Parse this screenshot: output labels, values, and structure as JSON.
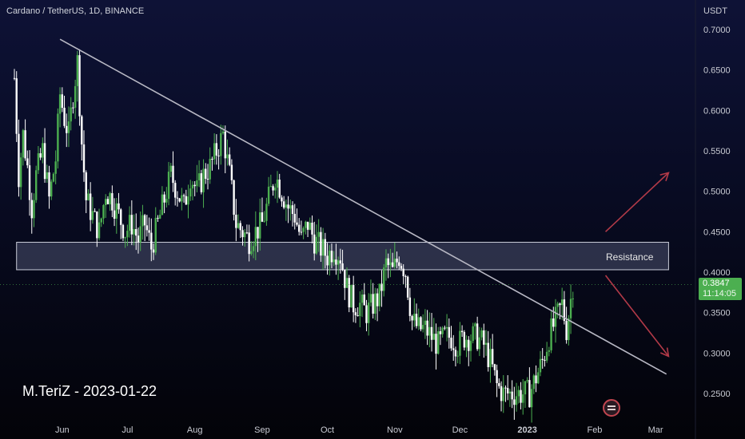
{
  "header": {
    "symbol": "Cardano / TetherUS, 1D, BINANCE"
  },
  "annotation": {
    "author_date": "M.TeriZ - 2023-01-22",
    "resistance_label": "Resistance"
  },
  "price_scale": {
    "unit": "USDT",
    "last_price": "0.3847",
    "countdown": "11:14:05"
  },
  "colors": {
    "up": "#4caf50",
    "down": "#ffffff",
    "trendline": "#b8b8c4",
    "zone": "#3a3e58",
    "arrow": "#b23a48",
    "badge": "#4caf50"
  },
  "logo": {
    "icon": "tradingview-watermark-icon"
  },
  "chart_data": {
    "type": "candlestick",
    "title": "Cardano / TetherUS, 1D, BINANCE",
    "ylabel": "USDT",
    "ylim": [
      0.225,
      0.73
    ],
    "y_ticks": [
      "0.7000",
      "0.6500",
      "0.6000",
      "0.5500",
      "0.5000",
      "0.4500",
      "0.4000",
      "0.3500",
      "0.3000",
      "0.2500"
    ],
    "x_ticks": [
      "Jun",
      "Jul",
      "Aug",
      "Sep",
      "Oct",
      "Nov",
      "Dec",
      "2023",
      "Feb",
      "Mar"
    ],
    "x_tick_dates": [
      "2022-06-01",
      "2022-07-01",
      "2022-08-01",
      "2022-09-01",
      "2022-10-01",
      "2022-11-01",
      "2022-12-01",
      "2023-01-01",
      "2023-02-01",
      "2023-03-01"
    ],
    "xlim": [
      "2022-05-10",
      "2023-03-12"
    ],
    "close_series": [
      [
        "2022-05-10",
        0.64
      ],
      [
        "2022-05-12",
        0.52
      ],
      [
        "2022-05-14",
        0.57
      ],
      [
        "2022-05-16",
        0.53
      ],
      [
        "2022-05-18",
        0.48
      ],
      [
        "2022-05-20",
        0.52
      ],
      [
        "2022-05-23",
        0.55
      ],
      [
        "2022-05-26",
        0.49
      ],
      [
        "2022-05-29",
        0.54
      ],
      [
        "2022-05-31",
        0.62
      ],
      [
        "2022-06-02",
        0.59
      ],
      [
        "2022-06-04",
        0.57
      ],
      [
        "2022-06-06",
        0.62
      ],
      [
        "2022-06-08",
        0.66
      ],
      [
        "2022-06-10",
        0.56
      ],
      [
        "2022-06-12",
        0.49
      ],
      [
        "2022-06-15",
        0.47
      ],
      [
        "2022-06-18",
        0.45
      ],
      [
        "2022-06-21",
        0.5
      ],
      [
        "2022-06-24",
        0.49
      ],
      [
        "2022-06-27",
        0.47
      ],
      [
        "2022-06-30",
        0.45
      ],
      [
        "2022-07-03",
        0.46
      ],
      [
        "2022-07-06",
        0.44
      ],
      [
        "2022-07-09",
        0.46
      ],
      [
        "2022-07-12",
        0.43
      ],
      [
        "2022-07-15",
        0.46
      ],
      [
        "2022-07-18",
        0.49
      ],
      [
        "2022-07-21",
        0.52
      ],
      [
        "2022-07-24",
        0.5
      ],
      [
        "2022-07-27",
        0.48
      ],
      [
        "2022-07-30",
        0.52
      ],
      [
        "2022-08-02",
        0.5
      ],
      [
        "2022-08-05",
        0.52
      ],
      [
        "2022-08-08",
        0.53
      ],
      [
        "2022-08-11",
        0.55
      ],
      [
        "2022-08-14",
        0.57
      ],
      [
        "2022-08-17",
        0.52
      ],
      [
        "2022-08-20",
        0.46
      ],
      [
        "2022-08-23",
        0.45
      ],
      [
        "2022-08-26",
        0.44
      ],
      [
        "2022-08-29",
        0.45
      ],
      [
        "2022-09-01",
        0.46
      ],
      [
        "2022-09-04",
        0.49
      ],
      [
        "2022-09-07",
        0.52
      ],
      [
        "2022-09-10",
        0.5
      ],
      [
        "2022-09-13",
        0.48
      ],
      [
        "2022-09-16",
        0.47
      ],
      [
        "2022-09-19",
        0.44
      ],
      [
        "2022-09-22",
        0.46
      ],
      [
        "2022-09-25",
        0.44
      ],
      [
        "2022-09-28",
        0.43
      ],
      [
        "2022-10-01",
        0.42
      ],
      [
        "2022-10-04",
        0.43
      ],
      [
        "2022-10-07",
        0.42
      ],
      [
        "2022-10-10",
        0.38
      ],
      [
        "2022-10-13",
        0.36
      ],
      [
        "2022-10-16",
        0.36
      ],
      [
        "2022-10-19",
        0.35
      ],
      [
        "2022-10-22",
        0.36
      ],
      [
        "2022-10-25",
        0.37
      ],
      [
        "2022-10-28",
        0.41
      ],
      [
        "2022-10-31",
        0.4
      ],
      [
        "2022-11-03",
        0.42
      ],
      [
        "2022-11-06",
        0.4
      ],
      [
        "2022-11-09",
        0.34
      ],
      [
        "2022-11-12",
        0.33
      ],
      [
        "2022-11-15",
        0.33
      ],
      [
        "2022-11-18",
        0.32
      ],
      [
        "2022-11-21",
        0.31
      ],
      [
        "2022-11-24",
        0.32
      ],
      [
        "2022-11-27",
        0.32
      ],
      [
        "2022-11-30",
        0.31
      ],
      [
        "2022-12-03",
        0.32
      ],
      [
        "2022-12-06",
        0.32
      ],
      [
        "2022-12-09",
        0.32
      ],
      [
        "2022-12-12",
        0.31
      ],
      [
        "2022-12-15",
        0.29
      ],
      [
        "2022-12-18",
        0.26
      ],
      [
        "2022-12-21",
        0.25
      ],
      [
        "2022-12-24",
        0.25
      ],
      [
        "2022-12-27",
        0.25
      ],
      [
        "2022-12-30",
        0.25
      ],
      [
        "2023-01-02",
        0.25
      ],
      [
        "2023-01-05",
        0.27
      ],
      [
        "2023-01-08",
        0.29
      ],
      [
        "2023-01-11",
        0.32
      ],
      [
        "2023-01-14",
        0.34
      ],
      [
        "2023-01-17",
        0.36
      ],
      [
        "2023-01-19",
        0.33
      ],
      [
        "2023-01-22",
        0.3847
      ]
    ],
    "trendline": {
      "start": [
        "2022-05-31",
        0.688
      ],
      "end": [
        "2023-03-06",
        0.274
      ]
    },
    "resistance_zone": {
      "start": "2022-05-11",
      "end": "2023-03-07",
      "y_low": 0.403,
      "y_high": 0.437,
      "label": "Resistance"
    },
    "projection_arrows": [
      {
        "from": [
          "2023-02-06",
          0.45
        ],
        "to": [
          "2023-03-07",
          0.523
        ],
        "direction": "up"
      },
      {
        "from": [
          "2023-02-06",
          0.396
        ],
        "to": [
          "2023-03-07",
          0.296
        ],
        "direction": "down"
      }
    ],
    "last_price": 0.3847,
    "grid": false,
    "legend": "none"
  }
}
